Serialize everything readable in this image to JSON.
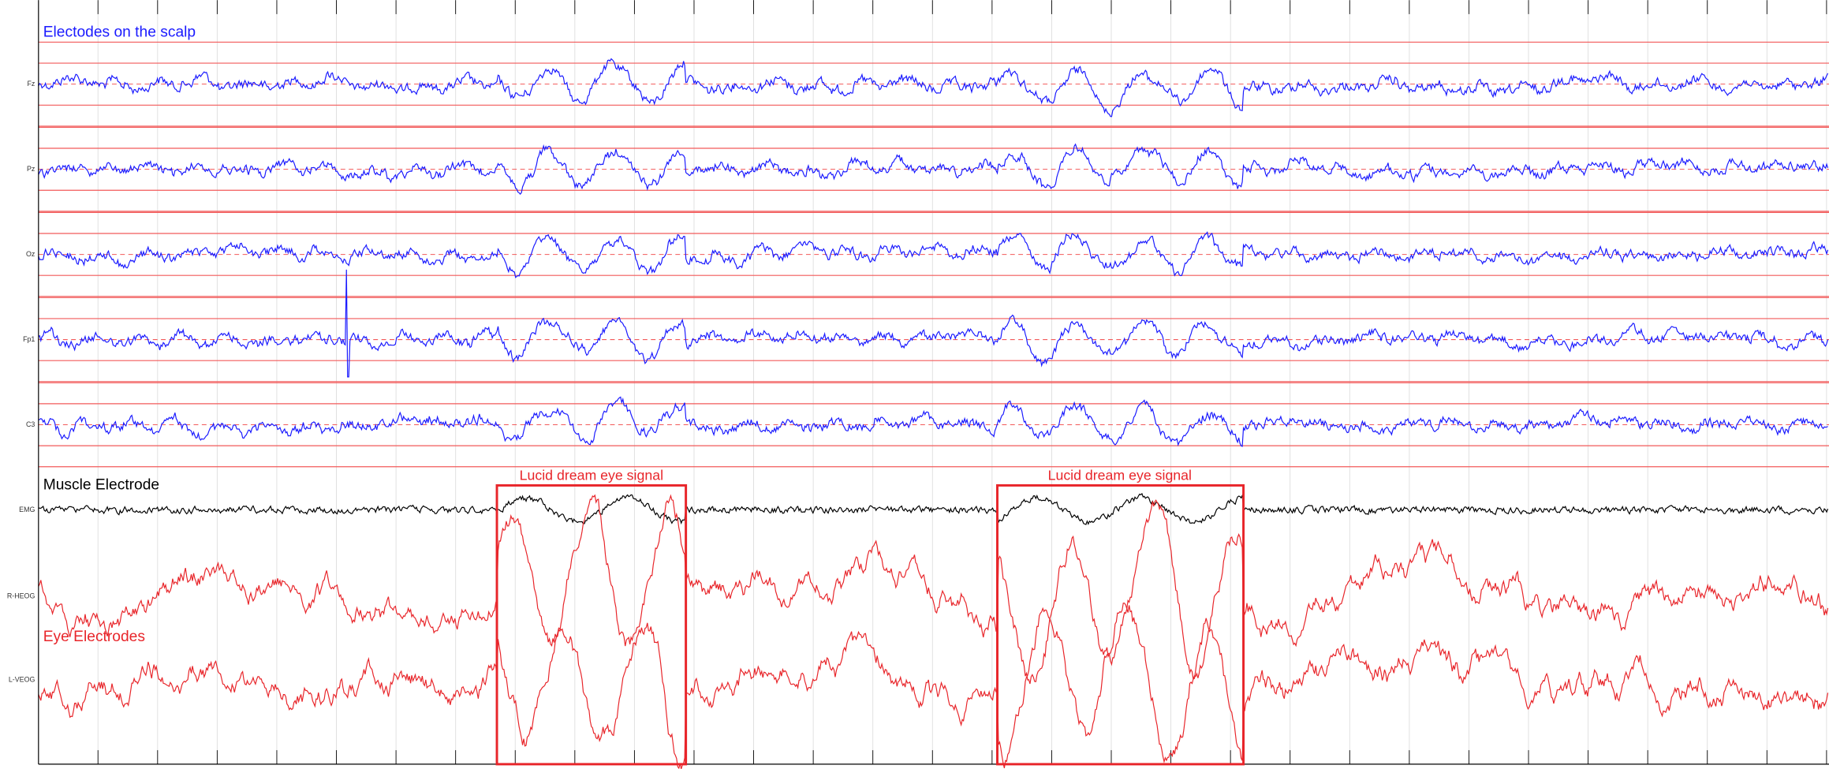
{
  "scalp_label": "Electodes on the scalp",
  "muscle_label": "Muscle Electrode",
  "eye_label": "Eye Electrodes",
  "channels": [
    "Fz",
    "Pz",
    "Oz",
    "Fp1",
    "C3",
    "EMG",
    "R-HEOG",
    "L-VEOG"
  ],
  "annotations": [
    "Lucid dream eye signal",
    "Lucid dream eye signal"
  ]
}
